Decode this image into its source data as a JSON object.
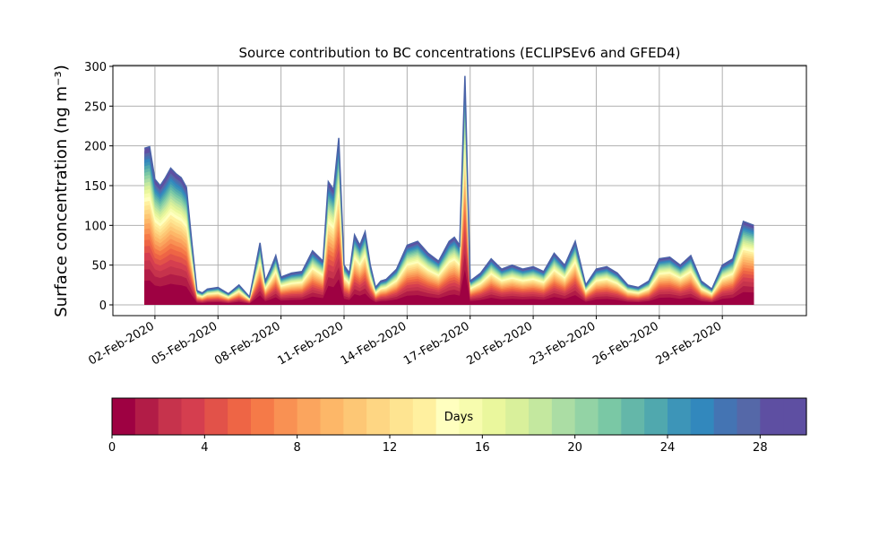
{
  "chart_data": {
    "type": "area",
    "title": "Source contribution to BC concentrations (ECLIPSEv6 and GFED4)",
    "ylabel": "Surface concentration (ng m⁻³)",
    "xlabel": "",
    "ylim": [
      0,
      300
    ],
    "yticks": [
      0,
      50,
      100,
      150,
      200,
      250,
      300
    ],
    "xlim": [
      "2020-01-31",
      "2020-03-04"
    ],
    "xticks": [
      "2020-02-02",
      "2020-02-05",
      "2020-02-08",
      "2020-02-11",
      "2020-02-14",
      "2020-02-17",
      "2020-02-20",
      "2020-02-23",
      "2020-02-26",
      "2020-02-29"
    ],
    "xtick_labels": [
      "02-Feb-2020",
      "05-Feb-2020",
      "08-Feb-2020",
      "11-Feb-2020",
      "14-Feb-2020",
      "17-Feb-2020",
      "20-Feb-2020",
      "23-Feb-2020",
      "26-Feb-2020",
      "29-Feb-2020"
    ],
    "grid": true,
    "stacked_by": "age of emission (days)",
    "total": {
      "x": [
        "2020-02-01T12:00",
        "2020-02-01T18:00",
        "2020-02-02T00:00",
        "2020-02-02T06:00",
        "2020-02-02T12:00",
        "2020-02-02T18:00",
        "2020-02-03T00:00",
        "2020-02-03T06:00",
        "2020-02-03T12:00",
        "2020-02-03T18:00",
        "2020-02-04T00:00",
        "2020-02-04T06:00",
        "2020-02-04T12:00",
        "2020-02-05T00:00",
        "2020-02-05T12:00",
        "2020-02-06T00:00",
        "2020-02-06T12:00",
        "2020-02-07T00:00",
        "2020-02-07T06:00",
        "2020-02-07T12:00",
        "2020-02-07T18:00",
        "2020-02-08T00:00",
        "2020-02-08T12:00",
        "2020-02-09T00:00",
        "2020-02-09T12:00",
        "2020-02-10T00:00",
        "2020-02-10T06:00",
        "2020-02-10T12:00",
        "2020-02-10T18:00",
        "2020-02-11T00:00",
        "2020-02-11T06:00",
        "2020-02-11T12:00",
        "2020-02-11T18:00",
        "2020-02-12T00:00",
        "2020-02-12T06:00",
        "2020-02-12T12:00",
        "2020-02-12T18:00",
        "2020-02-13T00:00",
        "2020-02-13T12:00",
        "2020-02-14T00:00",
        "2020-02-14T12:00",
        "2020-02-15T00:00",
        "2020-02-15T12:00",
        "2020-02-16T00:00",
        "2020-02-16T06:00",
        "2020-02-16T12:00",
        "2020-02-16T18:00",
        "2020-02-17T00:00",
        "2020-02-17T06:00",
        "2020-02-17T12:00",
        "2020-02-18T00:00",
        "2020-02-18T12:00",
        "2020-02-19T00:00",
        "2020-02-19T12:00",
        "2020-02-20T00:00",
        "2020-02-20T12:00",
        "2020-02-21T00:00",
        "2020-02-21T12:00",
        "2020-02-22T00:00",
        "2020-02-22T12:00",
        "2020-02-23T00:00",
        "2020-02-23T12:00",
        "2020-02-24T00:00",
        "2020-02-24T12:00",
        "2020-02-25T00:00",
        "2020-02-25T12:00",
        "2020-02-26T00:00",
        "2020-02-26T12:00",
        "2020-02-27T00:00",
        "2020-02-27T12:00",
        "2020-02-28T00:00",
        "2020-02-28T12:00",
        "2020-02-29T00:00",
        "2020-02-29T12:00",
        "2020-03-01T00:00",
        "2020-03-01T12:00"
      ],
      "y": [
        197,
        199,
        158,
        150,
        160,
        172,
        165,
        160,
        148,
        80,
        18,
        15,
        20,
        22,
        14,
        25,
        10,
        78,
        30,
        45,
        62,
        35,
        40,
        42,
        68,
        55,
        155,
        145,
        210,
        50,
        40,
        88,
        75,
        92,
        50,
        22,
        30,
        32,
        45,
        75,
        80,
        65,
        55,
        80,
        85,
        75,
        288,
        30,
        35,
        40,
        58,
        45,
        50,
        45,
        48,
        42,
        65,
        50,
        80,
        25,
        45,
        48,
        40,
        25,
        22,
        30,
        58,
        60,
        50,
        62,
        30,
        20,
        50,
        58,
        105,
        100
      ]
    }
  },
  "colorbar": {
    "label": "Days",
    "ticks": [
      0,
      4,
      8,
      12,
      16,
      20,
      24,
      28
    ],
    "range": [
      0,
      30
    ],
    "palette": [
      "#9e0142",
      "#b21c47",
      "#c6334c",
      "#d53e4f",
      "#e25249",
      "#ee6545",
      "#f57a48",
      "#f99153",
      "#fba55e",
      "#fdb768",
      "#fdc775",
      "#fed683",
      "#fee491",
      "#fff09f",
      "#ffffbf",
      "#f7fcae",
      "#eaf79d",
      "#d9f09b",
      "#c4e89f",
      "#abdda4",
      "#93d3a5",
      "#7ac8a5",
      "#64b7a9",
      "#50a8ae",
      "#3d95b8",
      "#3288bd",
      "#4474b3",
      "#5568a8",
      "#5e4fa2",
      "#5e4fa2"
    ]
  }
}
